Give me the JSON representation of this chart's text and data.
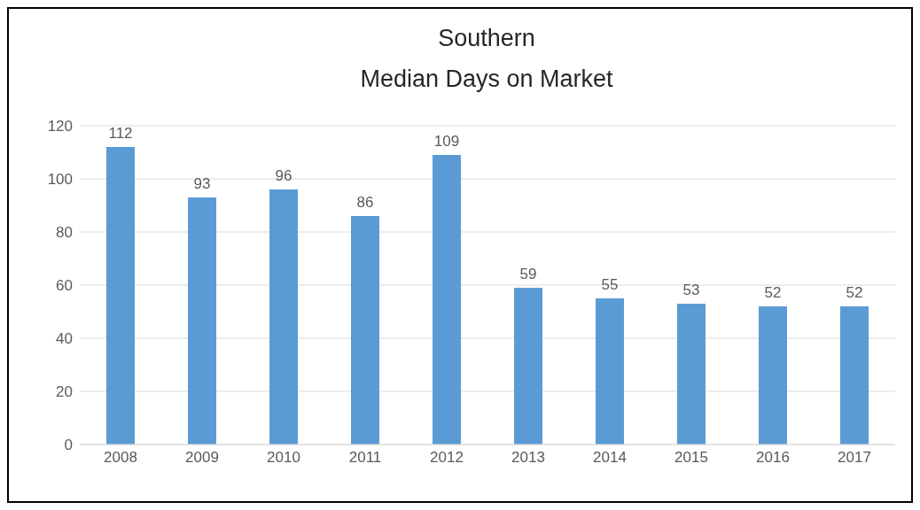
{
  "chart_data": {
    "type": "bar",
    "title": "Southern",
    "subtitle": "Median Days on Market",
    "categories": [
      "2008",
      "2009",
      "2010",
      "2011",
      "2012",
      "2013",
      "2014",
      "2015",
      "2016",
      "2017"
    ],
    "values": [
      112,
      93,
      96,
      86,
      109,
      59,
      55,
      53,
      52,
      52
    ],
    "color": "#5b9bd5",
    "ylim": [
      0,
      120
    ],
    "yticks": [
      0,
      20,
      40,
      60,
      80,
      100,
      120
    ],
    "grid": "y",
    "data_labels": true
  }
}
